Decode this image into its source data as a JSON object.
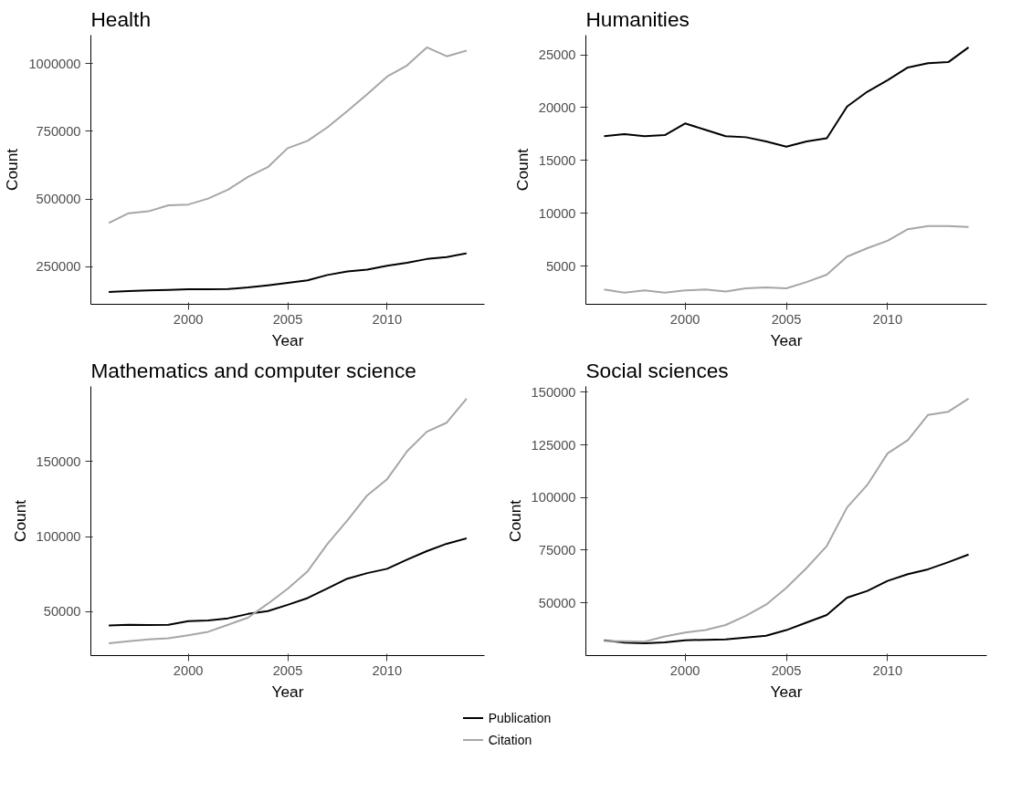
{
  "chart_data": [
    {
      "type": "line",
      "title": "Health",
      "xlabel": "Year",
      "ylabel": "Count",
      "x": [
        1996,
        1997,
        1998,
        1999,
        2000,
        2001,
        2002,
        2003,
        2004,
        2005,
        2006,
        2007,
        2008,
        2009,
        2010,
        2011,
        2012,
        2013,
        2014
      ],
      "xlim": [
        1995.1,
        2014.9
      ],
      "xticks": [
        2000,
        2005,
        2010
      ],
      "ylim": [
        111850,
        1105150
      ],
      "yticks": [
        250000,
        500000,
        750000,
        1000000
      ],
      "grid": false,
      "legend": "bottom",
      "series": [
        {
          "name": "Publication",
          "color": "#000000",
          "values": [
            157000,
            161000,
            163000,
            165000,
            167000,
            167000,
            168000,
            174000,
            182000,
            191000,
            200000,
            220000,
            233000,
            240000,
            254000,
            265000,
            279000,
            286000,
            300000
          ]
        },
        {
          "name": "Citation",
          "color": "#a6a6a6",
          "values": [
            412000,
            448000,
            455000,
            477000,
            480000,
            502000,
            535000,
            582000,
            618000,
            688000,
            715000,
            765000,
            825000,
            887000,
            952000,
            993000,
            1060000,
            1027000,
            1048000
          ]
        }
      ]
    },
    {
      "type": "line",
      "title": "Humanities",
      "xlabel": "Year",
      "ylabel": "Count",
      "x": [
        1996,
        1997,
        1998,
        1999,
        2000,
        2001,
        2002,
        2003,
        2004,
        2005,
        2006,
        2007,
        2008,
        2009,
        2010,
        2011,
        2012,
        2013,
        2014
      ],
      "xlim": [
        1995.1,
        2014.9
      ],
      "xticks": [
        2000,
        2005,
        2010
      ],
      "ylim": [
        1393,
        26857
      ],
      "yticks": [
        5000,
        10000,
        15000,
        20000,
        25000
      ],
      "grid": false,
      "series": [
        {
          "color": "#000000",
          "values": [
            17300,
            17500,
            17300,
            17400,
            18500,
            17900,
            17300,
            17200,
            16800,
            16300,
            16800,
            17100,
            20100,
            21500,
            22600,
            23800,
            24200,
            24300,
            25700
          ]
        },
        {
          "color": "#a6a6a6",
          "values": [
            2800,
            2500,
            2700,
            2500,
            2700,
            2800,
            2600,
            2900,
            3000,
            2900,
            3500,
            4200,
            5900,
            6700,
            7400,
            8500,
            8800,
            8800,
            8700
          ]
        }
      ]
    },
    {
      "type": "line",
      "title": "Mathematics and computer science",
      "xlabel": "Year",
      "ylabel": "Count",
      "x": [
        1996,
        1997,
        1998,
        1999,
        2000,
        2001,
        2002,
        2003,
        2004,
        2005,
        2006,
        2007,
        2008,
        2009,
        2010,
        2011,
        2012,
        2013,
        2014
      ],
      "xlim": [
        1995.1,
        2014.9
      ],
      "xticks": [
        2000,
        2005,
        2010
      ],
      "ylim": [
        20745,
        200155
      ],
      "yticks": [
        50000,
        100000,
        150000
      ],
      "grid": false,
      "series": [
        {
          "color": "#000000",
          "values": [
            40800,
            41300,
            41100,
            41300,
            43700,
            44200,
            45600,
            48500,
            50400,
            54600,
            59100,
            65500,
            72000,
            75700,
            78600,
            84700,
            90400,
            95300,
            98900
          ]
        },
        {
          "color": "#a6a6a6",
          "values": [
            28900,
            30300,
            31500,
            32300,
            34300,
            36600,
            41300,
            46000,
            55300,
            65300,
            76900,
            95200,
            110800,
            127500,
            138300,
            156800,
            170000,
            176000,
            192000
          ]
        }
      ]
    },
    {
      "type": "line",
      "title": "Social sciences",
      "xlabel": "Year",
      "ylabel": "Count",
      "x": [
        1996,
        1997,
        1998,
        1999,
        2000,
        2001,
        2002,
        2003,
        2004,
        2005,
        2006,
        2007,
        2008,
        2009,
        2010,
        2011,
        2012,
        2013,
        2014
      ],
      "xlim": [
        1995.1,
        2014.9
      ],
      "xticks": [
        2000,
        2005,
        2010
      ],
      "ylim": [
        24885,
        152815
      ],
      "yticks": [
        50000,
        75000,
        100000,
        125000,
        150000
      ],
      "grid": false,
      "series": [
        {
          "color": "#000000",
          "values": [
            32200,
            31100,
            30700,
            31200,
            32200,
            32400,
            32600,
            33500,
            34300,
            37000,
            40600,
            44200,
            52400,
            55600,
            60400,
            63600,
            65900,
            69300,
            72900
          ]
        },
        {
          "color": "#a6a6a6",
          "values": [
            31800,
            31700,
            31500,
            34000,
            35800,
            37000,
            39400,
            43800,
            49100,
            57100,
            66500,
            77000,
            95300,
            106000,
            121000,
            127300,
            139300,
            140800,
            147000
          ]
        }
      ]
    }
  ]
}
